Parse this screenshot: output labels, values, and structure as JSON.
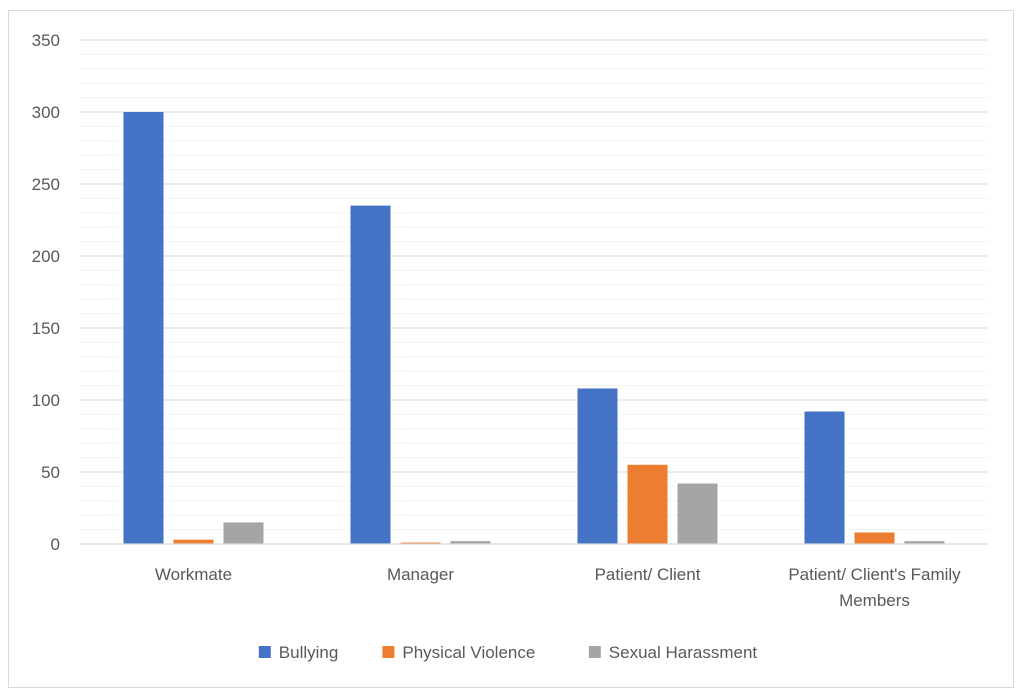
{
  "chart_data": {
    "type": "bar",
    "categories": [
      [
        "Workmate"
      ],
      [
        "Manager"
      ],
      [
        "Patient/ Client"
      ],
      [
        "Patient/ Client's Family",
        "Members"
      ]
    ],
    "series": [
      {
        "name": "Bullying",
        "color": "#4472c4",
        "values": [
          300,
          235,
          108,
          92
        ]
      },
      {
        "name": "Physical Violence",
        "color": "#ed7d31",
        "values": [
          3,
          1,
          55,
          8
        ]
      },
      {
        "name": "Sexual Harassment",
        "color": "#a5a5a5",
        "values": [
          15,
          2,
          42,
          2
        ]
      }
    ],
    "ylim": [
      0,
      350
    ],
    "yticks": [
      0,
      50,
      100,
      150,
      200,
      250,
      300,
      350
    ],
    "minor_gridlines": true,
    "legend_position": "bottom",
    "title": "",
    "xlabel": "",
    "ylabel": ""
  }
}
